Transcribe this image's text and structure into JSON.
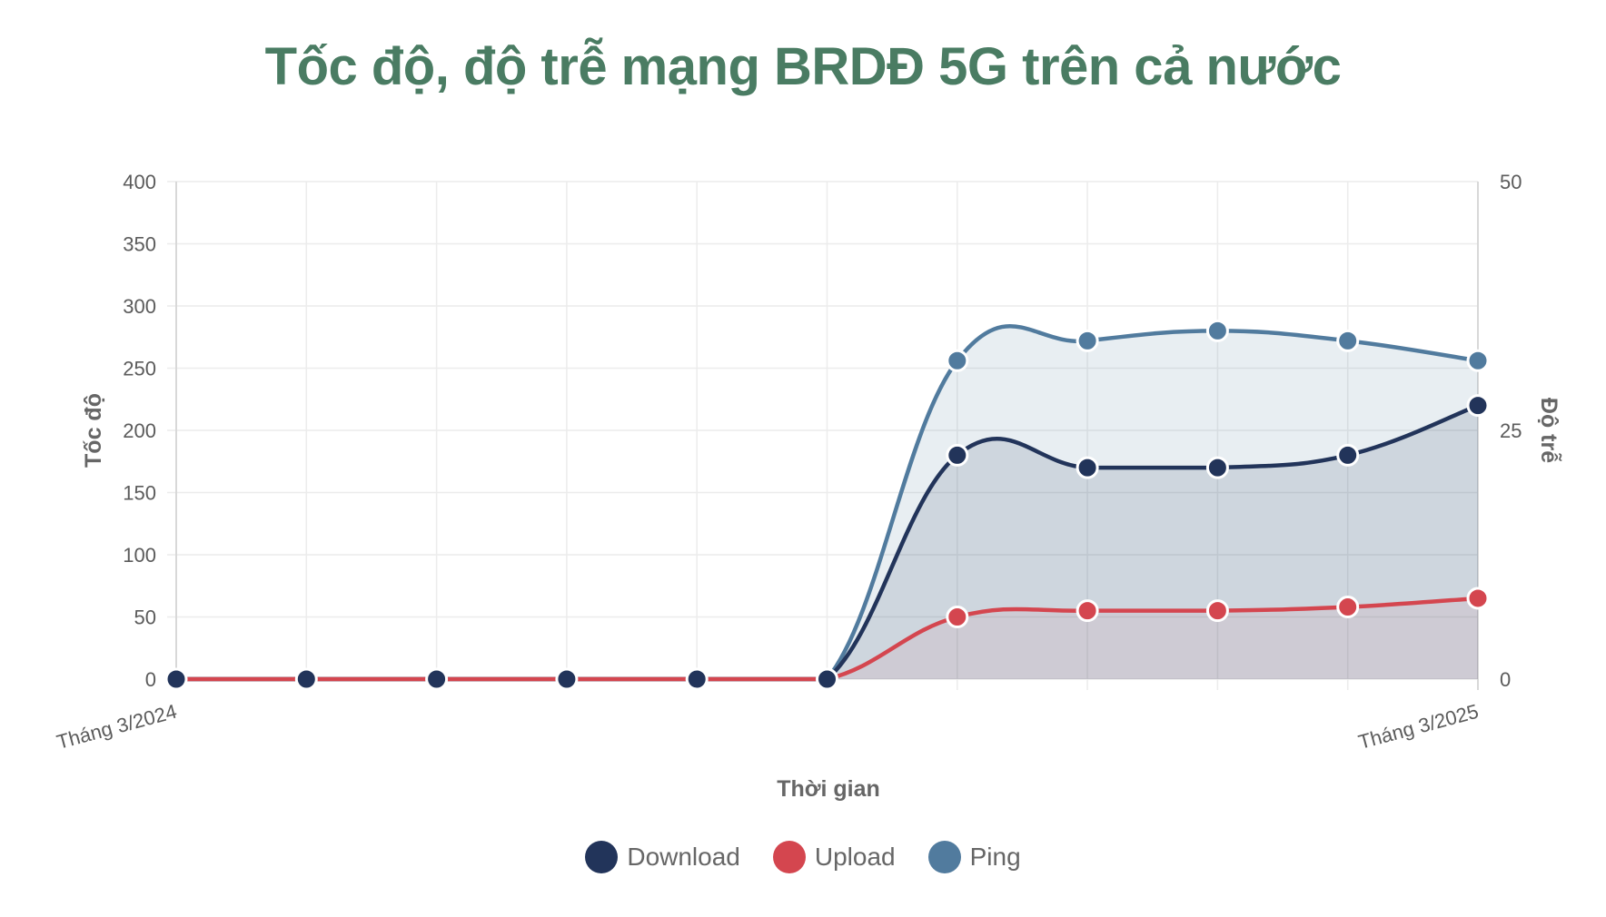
{
  "title": "Tốc độ, độ trễ mạng BRDĐ 5G trên cả nước",
  "chart_data": {
    "type": "area",
    "title": "Tốc độ, độ trễ mạng BRDĐ 5G trên cả nước",
    "xlabel": "Thời gian",
    "ylabel": "Tốc độ",
    "y2label": "Độ trễ",
    "x": [
      "Tháng 3/2024",
      "",
      "",
      "",
      "",
      "",
      "",
      "",
      "",
      "",
      "Tháng 3/2025"
    ],
    "x_tick_labels_shown": [
      "Tháng 3/2024",
      "Tháng 3/2025"
    ],
    "ylim": [
      0,
      400
    ],
    "y_ticks": [
      0,
      50,
      100,
      150,
      200,
      250,
      300,
      350,
      400
    ],
    "y2lim": [
      0,
      50
    ],
    "y2_ticks": [
      0,
      25,
      50
    ],
    "grid": true,
    "legend_position": "bottom",
    "series": [
      {
        "name": "Download",
        "axis": "left",
        "color": "#22345a",
        "values": [
          0,
          0,
          0,
          0,
          0,
          0,
          180,
          170,
          170,
          180,
          220
        ]
      },
      {
        "name": "Upload",
        "axis": "left",
        "color": "#d4464f",
        "values": [
          0,
          0,
          0,
          0,
          0,
          0,
          50,
          55,
          55,
          58,
          65
        ]
      },
      {
        "name": "Ping",
        "axis": "right",
        "color": "#517b9e",
        "values": [
          0,
          0,
          0,
          0,
          0,
          0,
          32,
          34,
          35,
          34,
          32
        ]
      }
    ]
  },
  "legend": [
    {
      "label": "Download",
      "color": "#22345a"
    },
    {
      "label": "Upload",
      "color": "#d4464f"
    },
    {
      "label": "Ping",
      "color": "#517b9e"
    }
  ]
}
